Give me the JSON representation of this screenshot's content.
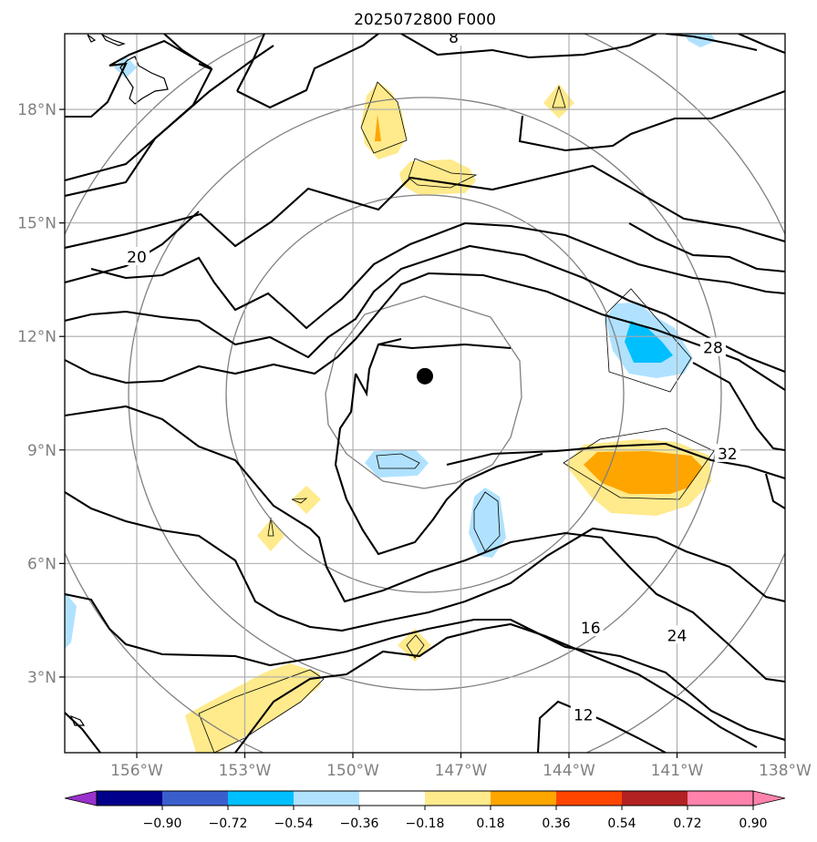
{
  "chart_data": {
    "type": "contour-map",
    "title": "2025072800 F000",
    "projection": "lat-lon",
    "xlim_lon": [
      -158,
      -138
    ],
    "ylim_lat": [
      1,
      20
    ],
    "grid": true,
    "x_ticks": [
      {
        "lon": -156,
        "label": "156°W"
      },
      {
        "lon": -153,
        "label": "153°W"
      },
      {
        "lon": -150,
        "label": "150°W"
      },
      {
        "lon": -147,
        "label": "147°W"
      },
      {
        "lon": -144,
        "label": "144°W"
      },
      {
        "lon": -141,
        "label": "141°W"
      },
      {
        "lon": -138,
        "label": "138°W"
      }
    ],
    "y_ticks": [
      {
        "lat": 3,
        "label": "3°N"
      },
      {
        "lat": 6,
        "label": "6°N"
      },
      {
        "lat": 9,
        "label": "9°N"
      },
      {
        "lat": 12,
        "label": "12°N"
      },
      {
        "lat": 15,
        "label": "15°N"
      },
      {
        "lat": 18,
        "label": "18°N"
      }
    ],
    "storm_center": {
      "lon": -148.0,
      "lat": 10.95
    },
    "contour_labels": [
      {
        "text": "8",
        "lon": -147.2,
        "lat": 19.9
      },
      {
        "text": "20",
        "lon": -156.0,
        "lat": 14.1
      },
      {
        "text": "28",
        "lon": -140.0,
        "lat": 11.7
      },
      {
        "text": "32",
        "lon": -139.6,
        "lat": 8.9
      },
      {
        "text": "16",
        "lon": -143.4,
        "lat": 4.3
      },
      {
        "text": "24",
        "lon": -141.0,
        "lat": 4.1
      },
      {
        "text": "12",
        "lon": -143.6,
        "lat": 2.0
      }
    ],
    "colorbar": {
      "boundaries": [
        -0.9,
        -0.72,
        -0.54,
        -0.36,
        -0.18,
        0.18,
        0.36,
        0.54,
        0.72,
        0.9
      ],
      "tick_labels": [
        "−0.90",
        "−0.72",
        "−0.54",
        "−0.36",
        "−0.18",
        "0.18",
        "0.36",
        "0.54",
        "0.72",
        "0.90"
      ],
      "colors": [
        "#9932cc",
        "#00008b",
        "#3a5fcd",
        "#00bfff",
        "#b0e2ff",
        "#ffffff",
        "#ffea8c",
        "#ffa500",
        "#ff4500",
        "#b22222",
        "#ff82ab"
      ],
      "extend": "both"
    }
  }
}
